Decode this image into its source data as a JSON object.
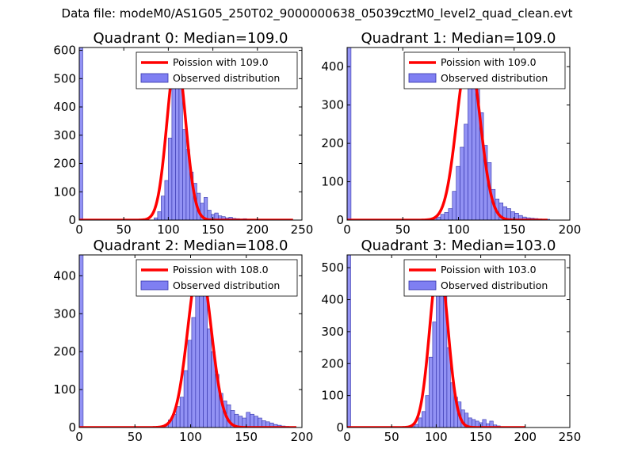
{
  "figure": {
    "suptitle": "Data file: modeM0/AS1G05_250T02_9000000638_05039cztM0_level2_quad_clean.evt",
    "bar_color": "#7f7ff2",
    "bar_edge": "#3333aa",
    "curve_color": "#ff0000"
  },
  "chart_data": [
    {
      "type": "bar",
      "title": "Quadrant 0: Median=109.0",
      "legend": [
        "Poission with 109.0",
        "Observed distribution"
      ],
      "legend_loc": "top-right",
      "median": 109.0,
      "xlim": [
        0,
        250
      ],
      "ylim": [
        0,
        610
      ],
      "xticks": [
        0,
        50,
        100,
        150,
        200,
        250
      ],
      "yticks": [
        0,
        100,
        200,
        300,
        400,
        500,
        600
      ],
      "bin_width": 4,
      "bins": [
        [
          0,
          610
        ],
        [
          84,
          8
        ],
        [
          88,
          30
        ],
        [
          92,
          85
        ],
        [
          96,
          140
        ],
        [
          100,
          290
        ],
        [
          104,
          490
        ],
        [
          108,
          550
        ],
        [
          112,
          490
        ],
        [
          116,
          320
        ],
        [
          120,
          250
        ],
        [
          124,
          170
        ],
        [
          128,
          130
        ],
        [
          132,
          95
        ],
        [
          136,
          60
        ],
        [
          140,
          80
        ],
        [
          144,
          35
        ],
        [
          148,
          20
        ],
        [
          152,
          25
        ],
        [
          156,
          15
        ],
        [
          160,
          12
        ],
        [
          164,
          8
        ],
        [
          168,
          10
        ],
        [
          172,
          6
        ],
        [
          176,
          5
        ],
        [
          180,
          4
        ],
        [
          184,
          5
        ],
        [
          188,
          3
        ],
        [
          192,
          3
        ],
        [
          196,
          2
        ],
        [
          200,
          2
        ],
        [
          204,
          2
        ],
        [
          208,
          1
        ],
        [
          212,
          1
        ]
      ],
      "curve_peak": 580,
      "curve_range": [
        0,
        240
      ]
    },
    {
      "type": "bar",
      "title": "Quadrant 1: Median=109.0",
      "legend": [
        "Poission with 109.0",
        "Observed distribution"
      ],
      "legend_loc": "top-right",
      "median": 109.0,
      "xlim": [
        0,
        200
      ],
      "ylim": [
        0,
        450
      ],
      "xticks": [
        0,
        50,
        100,
        150,
        200
      ],
      "yticks": [
        0,
        100,
        200,
        300,
        400
      ],
      "bin_width": 3.5,
      "bins": [
        [
          0,
          450
        ],
        [
          77,
          5
        ],
        [
          80.5,
          8
        ],
        [
          84,
          15
        ],
        [
          87.5,
          20
        ],
        [
          91,
          30
        ],
        [
          94.5,
          75
        ],
        [
          98,
          140
        ],
        [
          101.5,
          190
        ],
        [
          105,
          250
        ],
        [
          108.5,
          410
        ],
        [
          112,
          430
        ],
        [
          115.5,
          340
        ],
        [
          119,
          280
        ],
        [
          122.5,
          195
        ],
        [
          126,
          150
        ],
        [
          129.5,
          80
        ],
        [
          133,
          55
        ],
        [
          136.5,
          45
        ],
        [
          140,
          35
        ],
        [
          143.5,
          30
        ],
        [
          147,
          22
        ],
        [
          150.5,
          18
        ],
        [
          154,
          12
        ],
        [
          157.5,
          8
        ],
        [
          161,
          6
        ],
        [
          164.5,
          5
        ],
        [
          168,
          4
        ],
        [
          171.5,
          3
        ],
        [
          175,
          2
        ],
        [
          178.5,
          2
        ]
      ],
      "curve_peak": 435,
      "curve_range": [
        0,
        180
      ]
    },
    {
      "type": "bar",
      "title": "Quadrant 2: Median=108.0",
      "legend": [
        "Poission with 108.0",
        "Observed distribution"
      ],
      "legend_loc": "top-right",
      "median": 108.0,
      "xlim": [
        0,
        200
      ],
      "ylim": [
        0,
        455
      ],
      "xticks": [
        0,
        50,
        100,
        150,
        200
      ],
      "yticks": [
        0,
        100,
        200,
        300,
        400
      ],
      "bin_width": 3.5,
      "bins": [
        [
          0,
          455
        ],
        [
          73,
          3
        ],
        [
          76.5,
          8
        ],
        [
          80,
          20
        ],
        [
          83.5,
          35
        ],
        [
          87,
          55
        ],
        [
          90.5,
          80
        ],
        [
          94,
          150
        ],
        [
          97.5,
          230
        ],
        [
          101,
          290
        ],
        [
          104.5,
          350
        ],
        [
          108,
          420
        ],
        [
          111.5,
          360
        ],
        [
          115,
          260
        ],
        [
          118.5,
          200
        ],
        [
          122,
          140
        ],
        [
          125.5,
          90
        ],
        [
          129,
          70
        ],
        [
          132.5,
          60
        ],
        [
          136,
          45
        ],
        [
          139.5,
          35
        ],
        [
          143,
          30
        ],
        [
          146.5,
          25
        ],
        [
          150,
          40
        ],
        [
          153.5,
          35
        ],
        [
          157,
          30
        ],
        [
          160.5,
          25
        ],
        [
          164,
          18
        ],
        [
          167.5,
          15
        ],
        [
          171,
          12
        ],
        [
          174.5,
          8
        ],
        [
          178,
          6
        ],
        [
          181.5,
          4
        ],
        [
          185,
          3
        ],
        [
          188.5,
          2
        ]
      ],
      "curve_peak": 435,
      "curve_range": [
        0,
        195
      ]
    },
    {
      "type": "bar",
      "title": "Quadrant 3: Median=103.0",
      "legend": [
        "Poission with 103.0",
        "Observed distribution"
      ],
      "legend_loc": "top-right",
      "median": 103.0,
      "xlim": [
        0,
        250
      ],
      "ylim": [
        0,
        540
      ],
      "xticks": [
        0,
        50,
        100,
        150,
        200,
        250
      ],
      "yticks": [
        0,
        100,
        200,
        300,
        400,
        500
      ],
      "bin_width": 4,
      "bins": [
        [
          0,
          540
        ],
        [
          72,
          3
        ],
        [
          76,
          10
        ],
        [
          80,
          30
        ],
        [
          84,
          50
        ],
        [
          88,
          100
        ],
        [
          92,
          220
        ],
        [
          96,
          330
        ],
        [
          100,
          470
        ],
        [
          104,
          500
        ],
        [
          108,
          410
        ],
        [
          112,
          250
        ],
        [
          116,
          140
        ],
        [
          120,
          95
        ],
        [
          124,
          80
        ],
        [
          128,
          55
        ],
        [
          132,
          45
        ],
        [
          136,
          30
        ],
        [
          140,
          25
        ],
        [
          144,
          20
        ],
        [
          148,
          15
        ],
        [
          152,
          25
        ],
        [
          156,
          12
        ],
        [
          160,
          20
        ],
        [
          164,
          8
        ],
        [
          168,
          5
        ],
        [
          172,
          3
        ],
        [
          176,
          2
        ],
        [
          180,
          2
        ],
        [
          184,
          1
        ],
        [
          188,
          1
        ]
      ],
      "curve_peak": 520,
      "curve_range": [
        0,
        200
      ]
    }
  ]
}
